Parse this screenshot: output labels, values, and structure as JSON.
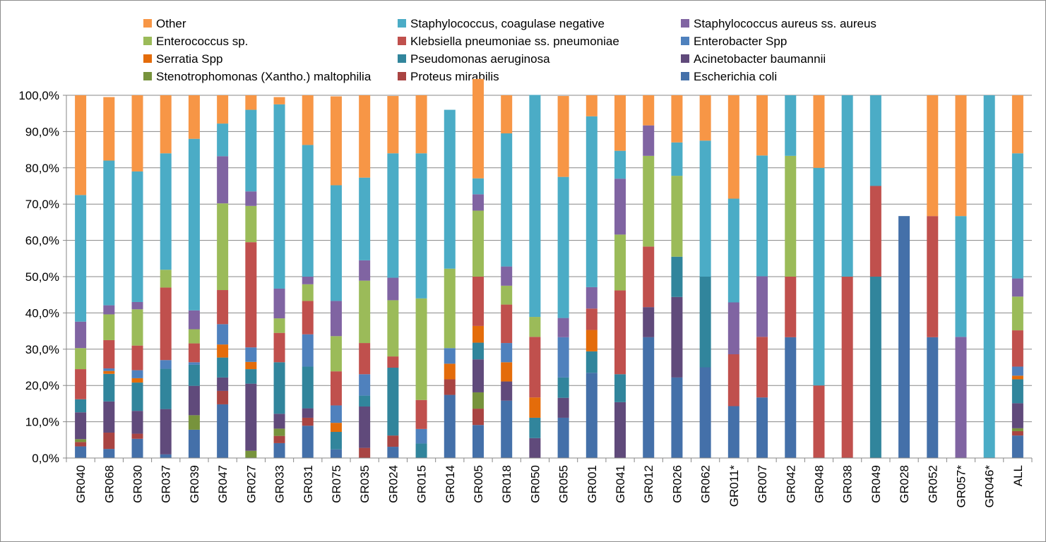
{
  "chart_data": {
    "type": "bar",
    "stacked": true,
    "percent": true,
    "title": "",
    "xlabel": "",
    "ylabel": "",
    "ylim": [
      0,
      100
    ],
    "y_ticks": [
      "0,0%",
      "10,0%",
      "20,0%",
      "30,0%",
      "40,0%",
      "50,0%",
      "60,0%",
      "70,0%",
      "80,0%",
      "90,0%",
      "100,0%"
    ],
    "grid": "horizontal",
    "legend_position": "top",
    "categories": [
      "GR040",
      "GR068",
      "GR030",
      "GR037",
      "GR039",
      "GR047",
      "GR027",
      "GR033",
      "GR031",
      "GR075",
      "GR035",
      "GR024",
      "GR015",
      "GR014",
      "GR005",
      "GR018",
      "GR050",
      "GR055",
      "GR001",
      "GR041",
      "GR012",
      "GR026",
      "GR062",
      "GR011*",
      "GR007",
      "GR042",
      "GR048",
      "GR038",
      "GR049",
      "GR028",
      "GR052",
      "GR057*",
      "GR046*",
      "ALL"
    ],
    "legend_order": [
      "Other",
      "Staphylococcus, coagulase negative",
      "Staphylococcus aureus ss. aureus",
      "Enterococcus sp.",
      "Klebsiella pneumoniae ss. pneumoniae",
      "Enterobacter Spp",
      "Serratia Spp",
      "Pseudomonas aeruginosa",
      "Acinetobacter baumannii",
      "Stenotrophomonas (Xantho.) maltophilia",
      "Proteus mirabilis",
      "Escherichia coli"
    ],
    "series": [
      {
        "name": "Escherichia coli",
        "color": "#4470A9",
        "values": [
          3.2,
          2.5,
          5.3,
          1.0,
          7.8,
          14.8,
          0,
          4.1,
          8.9,
          2.4,
          0,
          3.1,
          0,
          17.4,
          9.1,
          15.8,
          0,
          11.1,
          23.5,
          0,
          33.3,
          22.2,
          25.0,
          14.3,
          16.7,
          33.3,
          0,
          0,
          0,
          66.7,
          33.3,
          0,
          0,
          6.2
        ]
      },
      {
        "name": "Proteus mirabilis",
        "color": "#A94442",
        "values": [
          1.2,
          4.5,
          1.4,
          0,
          0,
          3.7,
          0,
          2.0,
          2.2,
          0,
          2.8,
          3.1,
          0,
          4.3,
          4.5,
          0,
          0,
          0,
          0,
          0,
          0,
          0,
          0,
          0,
          0,
          0,
          0,
          0,
          0,
          0,
          0,
          0,
          0,
          1.2
        ]
      },
      {
        "name": "Stenotrophomonas (Xantho.) maltophilia",
        "color": "#77933C",
        "values": [
          0.8,
          0,
          0,
          0,
          4.0,
          0,
          2.0,
          2.0,
          0,
          0,
          0,
          0,
          0,
          0,
          4.5,
          0,
          0,
          0,
          0,
          0,
          0,
          0,
          0,
          0,
          0,
          0,
          0,
          0,
          0,
          0,
          0,
          0,
          0,
          0.8
        ]
      },
      {
        "name": "Acinetobacter baumannii",
        "color": "#604A7B",
        "values": [
          7.4,
          8.6,
          6.3,
          12.5,
          8.1,
          3.7,
          18.5,
          4.1,
          2.6,
          0,
          11.4,
          0,
          0,
          0,
          9.1,
          5.3,
          5.5,
          5.5,
          0,
          15.4,
          8.3,
          22.2,
          0,
          0,
          0,
          0,
          0,
          0,
          0,
          0,
          0,
          0,
          0,
          6.9
        ]
      },
      {
        "name": "Pseudomonas aeruginosa",
        "color": "#31859C",
        "values": [
          3.6,
          7.6,
          7.8,
          11.1,
          5.8,
          5.5,
          4.0,
          14.2,
          11.5,
          4.8,
          3.0,
          18.7,
          4.0,
          0,
          4.6,
          0,
          5.6,
          5.6,
          5.9,
          7.7,
          0,
          11.1,
          25.0,
          0,
          0,
          0,
          0,
          0,
          50.0,
          0,
          0,
          0,
          0,
          6.6
        ]
      },
      {
        "name": "Serratia Spp",
        "color": "#E46C0A",
        "values": [
          0,
          0.8,
          1.2,
          0,
          0,
          3.6,
          2.0,
          0,
          0,
          2.5,
          0,
          0,
          0,
          4.3,
          4.6,
          5.3,
          5.6,
          0,
          5.9,
          0,
          0,
          0,
          0,
          0,
          0,
          0,
          0,
          0,
          0,
          0,
          0,
          0,
          0,
          1.0
        ]
      },
      {
        "name": "Enterobacter Spp",
        "color": "#4F81BD",
        "values": [
          0,
          0.7,
          2.2,
          2.4,
          0.7,
          5.6,
          4.0,
          0,
          8.9,
          4.8,
          5.9,
          0,
          4.0,
          4.3,
          0,
          5.3,
          0,
          11.1,
          0,
          0,
          0,
          0,
          0,
          0,
          0,
          0,
          0,
          0,
          0,
          0,
          0,
          0,
          0,
          2.5
        ]
      },
      {
        "name": "Klebsiella pneumoniae ss. pneumoniae",
        "color": "#C0504D",
        "values": [
          8.3,
          7.8,
          6.8,
          20.0,
          5.2,
          9.4,
          29.0,
          8.1,
          9.2,
          9.4,
          8.6,
          3.1,
          8.0,
          0,
          13.6,
          10.6,
          16.7,
          0,
          5.9,
          23.1,
          16.7,
          0,
          0,
          14.3,
          16.7,
          16.7,
          20.0,
          50.0,
          25.0,
          0,
          33.4,
          0,
          0,
          10.0
        ]
      },
      {
        "name": "Enterococcus sp.",
        "color": "#9BBB59",
        "values": [
          5.8,
          7.1,
          10.0,
          4.9,
          3.9,
          23.9,
          10.0,
          4.0,
          4.6,
          9.7,
          17.2,
          15.5,
          28.0,
          21.9,
          18.2,
          5.2,
          5.5,
          0,
          0,
          15.4,
          25.0,
          22.3,
          0,
          0,
          0,
          33.3,
          0,
          0,
          0,
          0,
          0,
          0,
          0,
          9.3
        ]
      },
      {
        "name": "Staphylococcus aureus ss. aureus",
        "color": "#8064A2",
        "values": [
          7.3,
          2.5,
          2.0,
          0,
          5.2,
          13.0,
          4.0,
          8.2,
          2.1,
          9.7,
          5.6,
          6.2,
          0,
          0,
          4.5,
          5.3,
          0,
          5.3,
          5.9,
          15.4,
          8.4,
          0,
          0,
          14.3,
          16.7,
          0,
          0,
          0,
          0,
          0,
          0,
          33.4,
          0,
          5.0
        ]
      },
      {
        "name": "Staphylococcus, coagulase negative",
        "color": "#4BACC6",
        "values": [
          34.9,
          39.9,
          36.0,
          32.1,
          47.3,
          9.0,
          22.5,
          50.8,
          36.3,
          31.9,
          22.8,
          34.3,
          40.0,
          43.8,
          4.4,
          36.7,
          61.2,
          38.9,
          47.1,
          7.7,
          0,
          9.2,
          37.5,
          28.6,
          33.3,
          16.7,
          60.0,
          50.0,
          25.0,
          0,
          0,
          33.3,
          100.0,
          34.5
        ]
      },
      {
        "name": "Other",
        "color": "#F79646",
        "values": [
          27.5,
          17.5,
          21.0,
          16.0,
          12.0,
          7.8,
          4.0,
          2.0,
          13.7,
          24.5,
          22.7,
          15.8,
          16.0,
          0,
          27.4,
          10.5,
          0,
          22.3,
          5.8,
          15.3,
          8.3,
          13.0,
          12.5,
          28.5,
          16.6,
          0,
          20.0,
          0,
          0,
          0,
          33.3,
          33.3,
          0,
          16.0
        ]
      }
    ]
  }
}
